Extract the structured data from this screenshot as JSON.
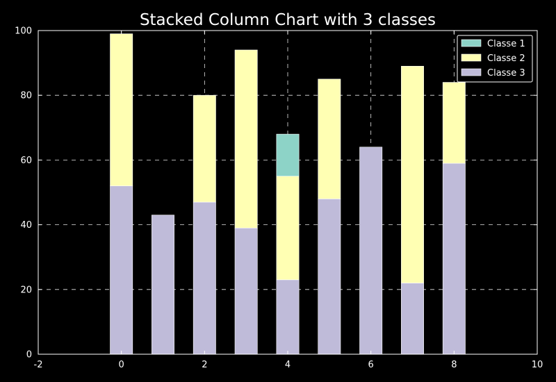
{
  "chart_data": {
    "type": "bar",
    "stacked": true,
    "title": "Stacked Column Chart with 3 classes",
    "xlabel": "",
    "ylabel": "",
    "x": [
      0,
      1,
      2,
      3,
      4,
      5,
      6,
      7,
      8
    ],
    "xlim": [
      -2,
      10
    ],
    "ylim": [
      0,
      100
    ],
    "xticks": [
      -2,
      0,
      2,
      4,
      6,
      8,
      10
    ],
    "yticks": [
      0,
      20,
      40,
      60,
      80,
      100
    ],
    "grid": true,
    "legend_position": "top-right",
    "series": [
      {
        "name": "Classe 3",
        "color": "#bfbbd9",
        "values": [
          52,
          43,
          47,
          39,
          23,
          48,
          64,
          22,
          59
        ]
      },
      {
        "name": "Classe 2",
        "color": "#ffffb3",
        "values": [
          47,
          0,
          33,
          55,
          32,
          37,
          0,
          67,
          25
        ]
      },
      {
        "name": "Classe 1",
        "color": "#8dd3c7",
        "values": [
          0,
          0,
          0,
          0,
          13,
          0,
          0,
          0,
          0
        ]
      }
    ],
    "legend_order": [
      "Classe 1",
      "Classe 2",
      "Classe 3"
    ]
  }
}
